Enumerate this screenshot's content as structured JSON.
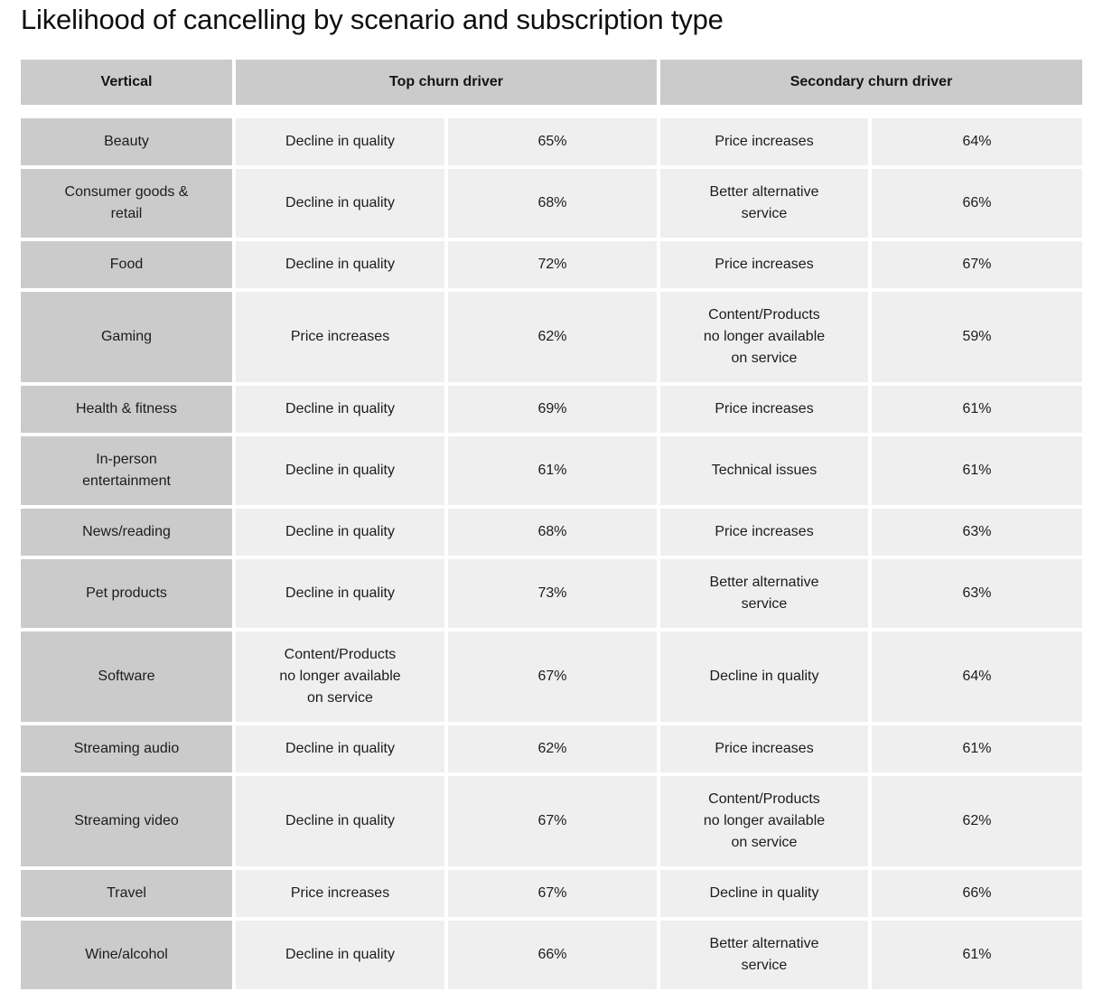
{
  "title": "Likelihood of cancelling by scenario and subscription type",
  "colors": {
    "header_bg": "#cbcbcb",
    "label_column_bg": "#cbcbcb",
    "data_cell_bg": "#efefef",
    "gutter": "#ffffff",
    "text": "#1c1c1c"
  },
  "table": {
    "headers": [
      "Vertical",
      "Top churn driver",
      "Secondary churn driver"
    ],
    "rows": [
      {
        "vertical": "Beauty",
        "top_driver": "Decline in quality",
        "top_pct": "65%",
        "sec_driver": "Price increases",
        "sec_pct": "64%"
      },
      {
        "vertical": "Consumer goods &\nretail",
        "top_driver": "Decline in quality",
        "top_pct": "68%",
        "sec_driver": "Better alternative\nservice",
        "sec_pct": "66%"
      },
      {
        "vertical": "Food",
        "top_driver": "Decline in quality",
        "top_pct": "72%",
        "sec_driver": "Price increases",
        "sec_pct": "67%"
      },
      {
        "vertical": "Gaming",
        "top_driver": "Price increases",
        "top_pct": "62%",
        "sec_driver": "Content/Products\nno longer available\non service",
        "sec_pct": "59%"
      },
      {
        "vertical": "Health & fitness",
        "top_driver": "Decline in quality",
        "top_pct": "69%",
        "sec_driver": "Price increases",
        "sec_pct": "61%"
      },
      {
        "vertical": "In-person\nentertainment",
        "top_driver": "Decline in quality",
        "top_pct": "61%",
        "sec_driver": "Technical issues",
        "sec_pct": "61%"
      },
      {
        "vertical": "News/reading",
        "top_driver": "Decline in quality",
        "top_pct": "68%",
        "sec_driver": "Price increases",
        "sec_pct": "63%"
      },
      {
        "vertical": "Pet products",
        "top_driver": "Decline in quality",
        "top_pct": "73%",
        "sec_driver": "Better alternative\nservice",
        "sec_pct": "63%"
      },
      {
        "vertical": "Software",
        "top_driver": "Content/Products\nno longer available\non service",
        "top_pct": "67%",
        "sec_driver": "Decline in quality",
        "sec_pct": "64%"
      },
      {
        "vertical": "Streaming audio",
        "top_driver": "Decline in quality",
        "top_pct": "62%",
        "sec_driver": "Price increases",
        "sec_pct": "61%"
      },
      {
        "vertical": "Streaming video",
        "top_driver": "Decline in quality",
        "top_pct": "67%",
        "sec_driver": "Content/Products\nno longer available\non service",
        "sec_pct": "62%"
      },
      {
        "vertical": "Travel",
        "top_driver": "Price increases",
        "top_pct": "67%",
        "sec_driver": "Decline in quality",
        "sec_pct": "66%"
      },
      {
        "vertical": "Wine/alcohol",
        "top_driver": "Decline in quality",
        "top_pct": "66%",
        "sec_driver": "Better alternative\nservice",
        "sec_pct": "61%"
      }
    ]
  },
  "chart_data": {
    "type": "table",
    "title": "Likelihood of cancelling by scenario and subscription type",
    "columns": [
      "Vertical",
      "Top churn driver",
      "Top churn driver %",
      "Secondary churn driver",
      "Secondary churn driver %"
    ],
    "rows": [
      [
        "Beauty",
        "Decline in quality",
        65,
        "Price increases",
        64
      ],
      [
        "Consumer goods & retail",
        "Decline in quality",
        68,
        "Better alternative service",
        66
      ],
      [
        "Food",
        "Decline in quality",
        72,
        "Price increases",
        67
      ],
      [
        "Gaming",
        "Price increases",
        62,
        "Content/Products no longer available on service",
        59
      ],
      [
        "Health & fitness",
        "Decline in quality",
        69,
        "Price increases",
        61
      ],
      [
        "In-person entertainment",
        "Decline in quality",
        61,
        "Technical issues",
        61
      ],
      [
        "News/reading",
        "Decline in quality",
        68,
        "Price increases",
        63
      ],
      [
        "Pet products",
        "Decline in quality",
        73,
        "Better alternative service",
        63
      ],
      [
        "Software",
        "Content/Products no longer available on service",
        67,
        "Decline in quality",
        64
      ],
      [
        "Streaming audio",
        "Decline in quality",
        62,
        "Price increases",
        61
      ],
      [
        "Streaming video",
        "Decline in quality",
        67,
        "Content/Products no longer available on service",
        62
      ],
      [
        "Travel",
        "Price increases",
        67,
        "Decline in quality",
        66
      ],
      [
        "Wine/alcohol",
        "Decline in quality",
        66,
        "Better alternative service",
        61
      ]
    ]
  }
}
